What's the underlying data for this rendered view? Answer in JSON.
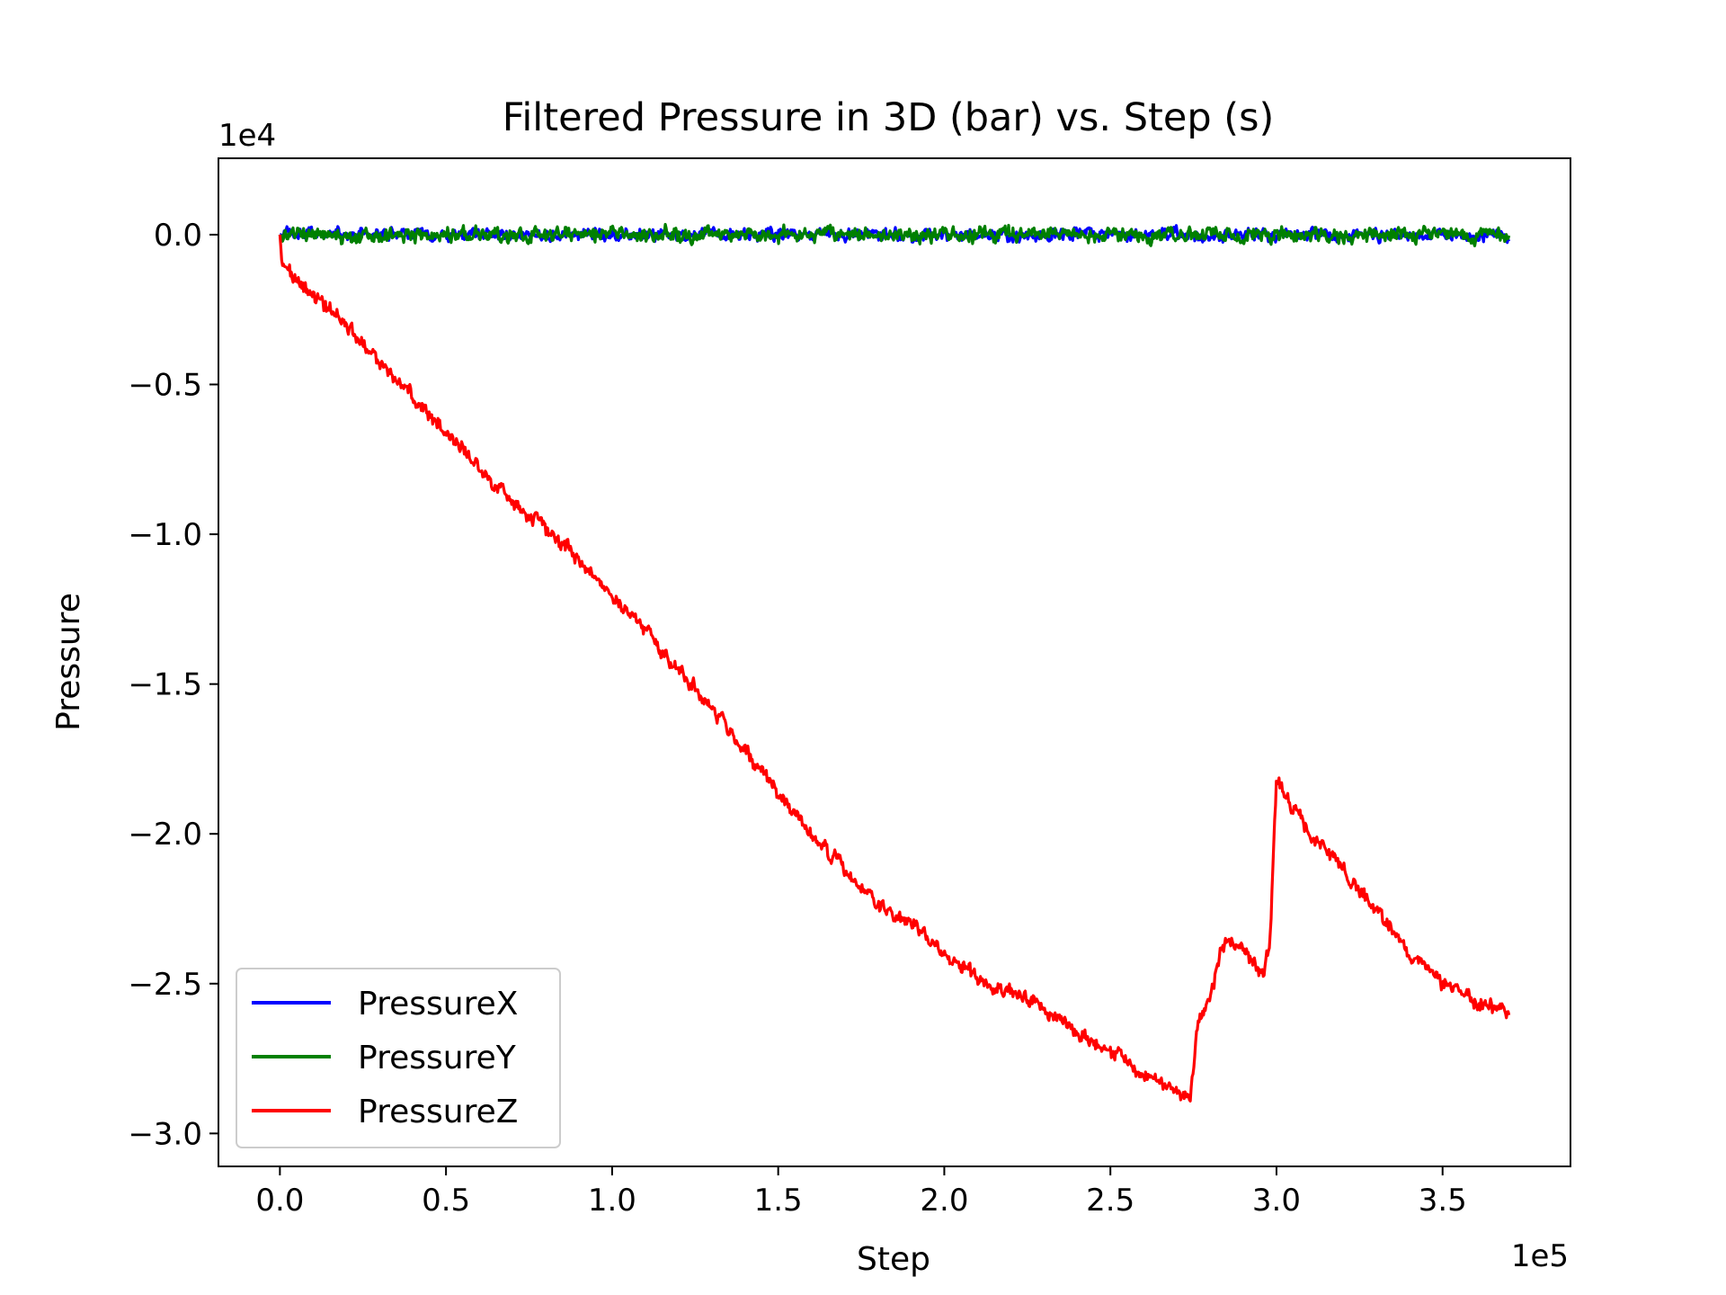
{
  "chart_data": {
    "type": "line",
    "title": "Filtered Pressure in 3D (bar) vs. Step (s)",
    "xlabel": "Step",
    "ylabel": "Pressure",
    "x_offset_text": "1e5",
    "y_offset_text": "1e4",
    "xlim": [
      -0.185,
      3.885
    ],
    "ylim": [
      -3.11,
      0.255
    ],
    "xticks": [
      0.0,
      0.5,
      1.0,
      1.5,
      2.0,
      2.5,
      3.0,
      3.5
    ],
    "xtick_labels": [
      "0.0",
      "0.5",
      "1.0",
      "1.5",
      "2.0",
      "2.5",
      "3.0",
      "3.5"
    ],
    "yticks": [
      0.0,
      -0.5,
      -1.0,
      -1.5,
      -2.0,
      -2.5,
      -3.0
    ],
    "ytick_labels": [
      "0.0",
      "−0.5",
      "−1.0",
      "−1.5",
      "−2.0",
      "−2.5",
      "−3.0"
    ],
    "grid": false,
    "legend_position": "lower left",
    "series": [
      {
        "name": "PressureX",
        "color": "#0000ff",
        "noise_amplitude": 0.03,
        "x": [
          0.0,
          3.7
        ],
        "y": [
          0.0,
          0.0
        ]
      },
      {
        "name": "PressureY",
        "color": "#008000",
        "noise_amplitude": 0.035,
        "x": [
          0.0,
          3.7
        ],
        "y": [
          0.0,
          0.0
        ]
      },
      {
        "name": "PressureZ",
        "color": "#ff0000",
        "noise_amplitude": 0.035,
        "x": [
          0.0,
          0.005,
          0.02,
          0.1,
          0.2,
          0.3,
          0.4,
          0.5,
          0.6,
          0.7,
          0.8,
          0.9,
          1.0,
          1.1,
          1.2,
          1.3,
          1.4,
          1.5,
          1.6,
          1.7,
          1.8,
          1.9,
          2.0,
          2.1,
          2.2,
          2.3,
          2.4,
          2.5,
          2.6,
          2.7,
          2.74,
          2.76,
          2.8,
          2.83,
          2.86,
          2.9,
          2.93,
          2.96,
          2.98,
          3.0,
          3.02,
          3.05,
          3.1,
          3.2,
          3.3,
          3.4,
          3.5,
          3.6,
          3.7
        ],
        "y": [
          0.0,
          -0.08,
          -0.12,
          -0.2,
          -0.3,
          -0.43,
          -0.54,
          -0.66,
          -0.78,
          -0.89,
          -0.98,
          -1.08,
          -1.2,
          -1.32,
          -1.45,
          -1.58,
          -1.72,
          -1.86,
          -2.0,
          -2.12,
          -2.24,
          -2.3,
          -2.4,
          -2.48,
          -2.52,
          -2.58,
          -2.66,
          -2.72,
          -2.8,
          -2.86,
          -2.88,
          -2.66,
          -2.55,
          -2.4,
          -2.35,
          -2.38,
          -2.42,
          -2.46,
          -2.38,
          -1.8,
          -1.86,
          -1.92,
          -2.0,
          -2.12,
          -2.25,
          -2.4,
          -2.5,
          -2.56,
          -2.6
        ]
      }
    ]
  }
}
